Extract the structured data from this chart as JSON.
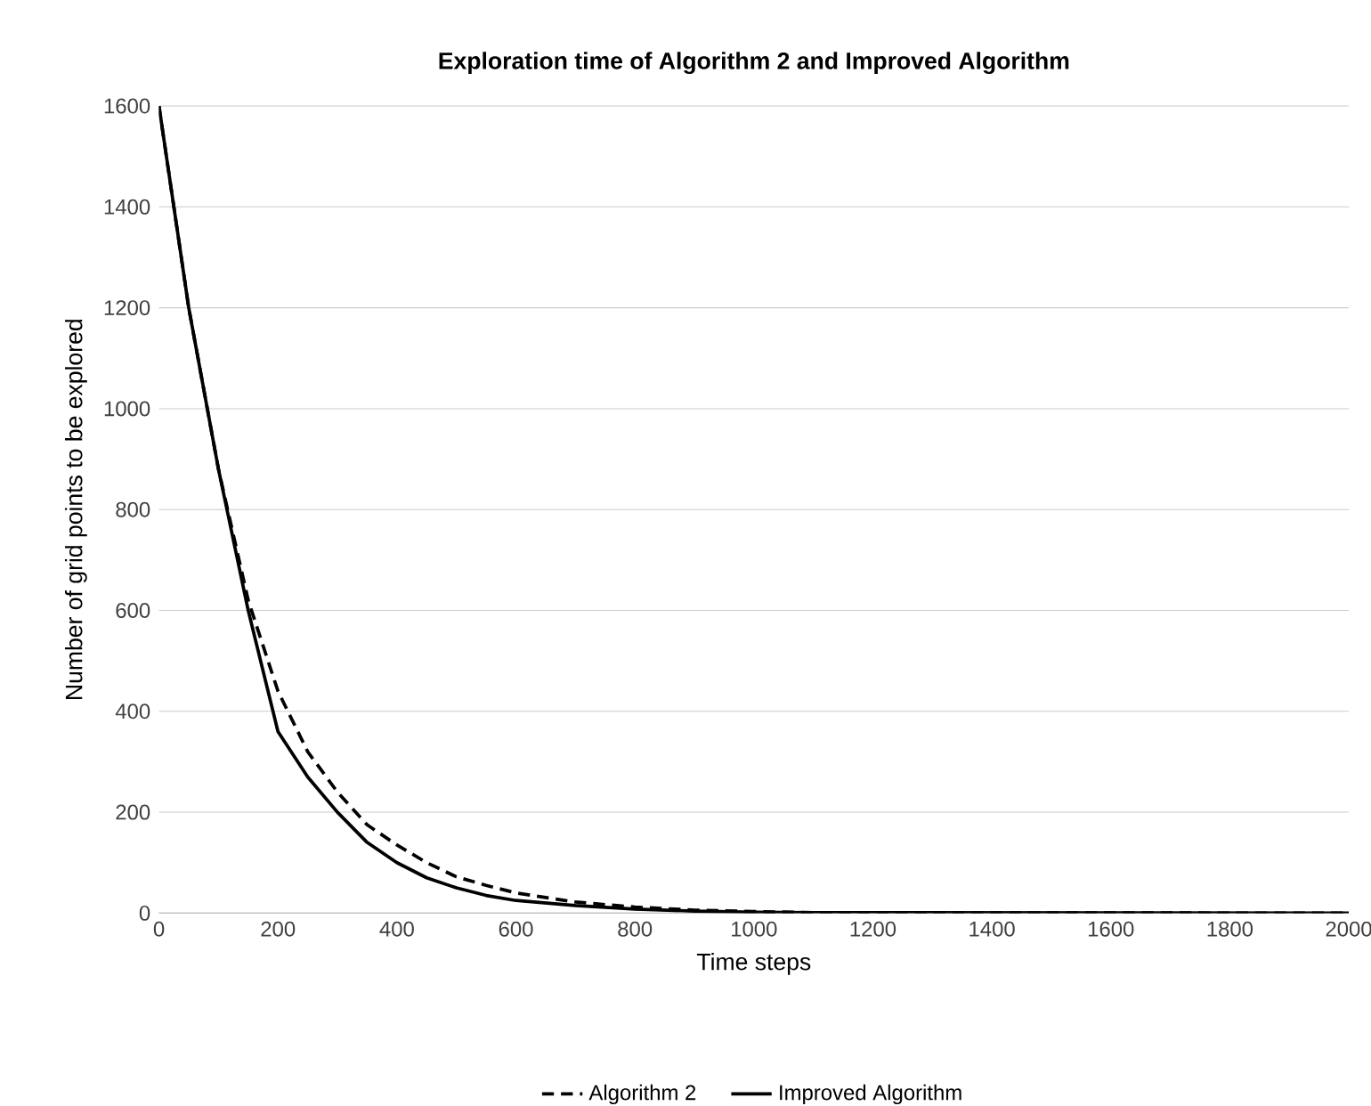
{
  "chart_data": {
    "type": "line",
    "title": "Exploration time of Algorithm 2 and Improved Algorithm",
    "xlabel": "Time steps",
    "ylabel": "Number of grid points to be explored",
    "x": [
      0,
      50,
      100,
      150,
      200,
      250,
      300,
      350,
      400,
      450,
      500,
      550,
      600,
      700,
      800,
      900,
      1000,
      1100,
      2000
    ],
    "series": [
      {
        "name": "Algorithm 2",
        "color": "#000000",
        "line_style": "dashed",
        "values": [
          1600,
          1200,
          880,
          620,
          440,
          320,
          240,
          175,
          135,
          100,
          72,
          55,
          40,
          22,
          12,
          6,
          3,
          1,
          0
        ]
      },
      {
        "name": "Improved Algorithm",
        "color": "#000000",
        "line_style": "solid",
        "values": [
          1600,
          1200,
          880,
          600,
          360,
          270,
          200,
          140,
          100,
          70,
          50,
          35,
          25,
          15,
          8,
          4,
          2,
          1,
          0
        ]
      }
    ],
    "xlim": [
      0,
      2000
    ],
    "ylim": [
      0,
      1600
    ],
    "xticks": [
      0,
      200,
      400,
      600,
      800,
      1000,
      1200,
      1400,
      1600,
      1800,
      2000
    ],
    "yticks": [
      0,
      200,
      400,
      600,
      800,
      1000,
      1200,
      1400,
      1600
    ],
    "grid": "y",
    "legend": "bottom"
  }
}
